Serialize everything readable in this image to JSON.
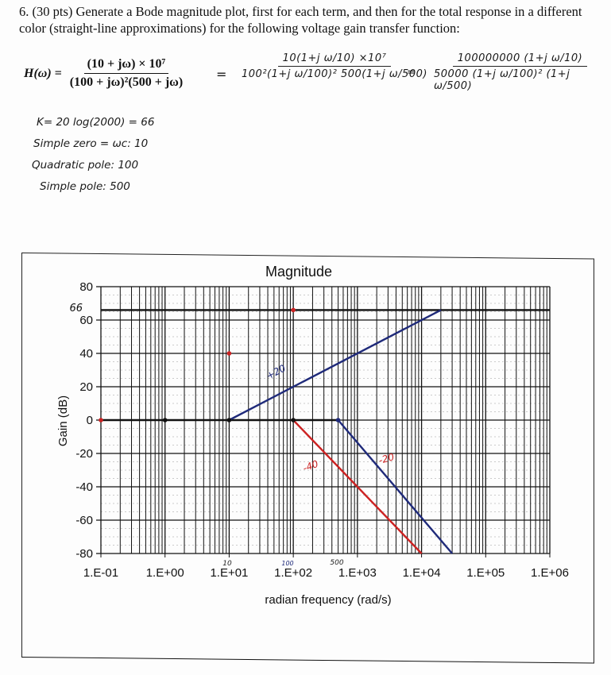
{
  "problem": {
    "text": "6. (30 pts) Generate a Bode magnitude plot, first for each term, and then for the total response in a different color (straight-line approximations) for the following voltage gain transfer function:"
  },
  "equation": {
    "lhs": "H(ω) =",
    "numerator": "(10 + jω) × 10⁷",
    "denominator": "(100 + jω)²(500 + jω)"
  },
  "handwritten": {
    "step1_equals": "=",
    "step1_numerator": "10(1+j ω/10) ×10⁷",
    "step1_denominator": "100²(1+j ω/100)² 500(1+j ω/500)",
    "step2_equals": "=",
    "step2_numerator": "100000000 (1+j ω/10)",
    "step2_denominator": "50000 (1+j ω/100)² (1+j ω/500)",
    "notes": [
      "K= 20 log(2000) = 66",
      "Simple zero = ωc: 10",
      "Quadratic pole: 100",
      "Simple pole: 500"
    ],
    "chart_annotations": {
      "y66": "66",
      "slope_up": "+20",
      "slope_red": "-40",
      "slope_blue": "-20",
      "x10": "10",
      "x100": "100",
      "x500": "500"
    }
  },
  "chart_data": {
    "type": "line",
    "title": "Magnitude",
    "xlabel": "radian frequency (rad/s)",
    "ylabel": "Gain (dB)",
    "xscale": "log",
    "xlim": [
      0.1,
      1000000
    ],
    "ylim": [
      -80,
      80
    ],
    "x_ticks": [
      "1.E-01",
      "1.E+00",
      "1.E+01",
      "1.E+02",
      "1.E+03",
      "1.E+04",
      "1.E+05",
      "1.E+06"
    ],
    "y_ticks": [
      80,
      60,
      40,
      20,
      0,
      -20,
      -40,
      -60,
      -80
    ],
    "grid": true,
    "series": [
      {
        "name": "constant K",
        "color": "#111111",
        "points": [
          [
            0.1,
            66
          ],
          [
            1000000,
            66
          ]
        ]
      },
      {
        "name": "zero baseline",
        "color": "#111111",
        "points": [
          [
            0.1,
            0
          ],
          [
            500,
            0
          ]
        ]
      },
      {
        "name": "simple zero (+20 dB/dec)",
        "color": "#1f2a7a",
        "points": [
          [
            10,
            0
          ],
          [
            20000,
            66
          ]
        ]
      },
      {
        "name": "quadratic pole (-40 dB/dec)",
        "color": "#cc2222",
        "points": [
          [
            100,
            0
          ],
          [
            10000,
            -80
          ]
        ]
      },
      {
        "name": "simple pole (-20 dB/dec)",
        "color": "#1f2a7a",
        "points": [
          [
            500,
            0
          ],
          [
            30000,
            -80
          ]
        ]
      }
    ],
    "markers": [
      {
        "x": 0.1,
        "y": 0,
        "color": "#cc2222"
      },
      {
        "x": 1,
        "y": 0,
        "color": "#111111"
      },
      {
        "x": 10,
        "y": 0,
        "color": "#111111"
      },
      {
        "x": 100,
        "y": 0,
        "color": "#111111"
      },
      {
        "x": 500,
        "y": 0,
        "color": "#1f2a7a"
      },
      {
        "x": 10,
        "y": 40,
        "color": "#cc2222"
      },
      {
        "x": 100,
        "y": 66,
        "color": "#cc2222"
      }
    ]
  }
}
